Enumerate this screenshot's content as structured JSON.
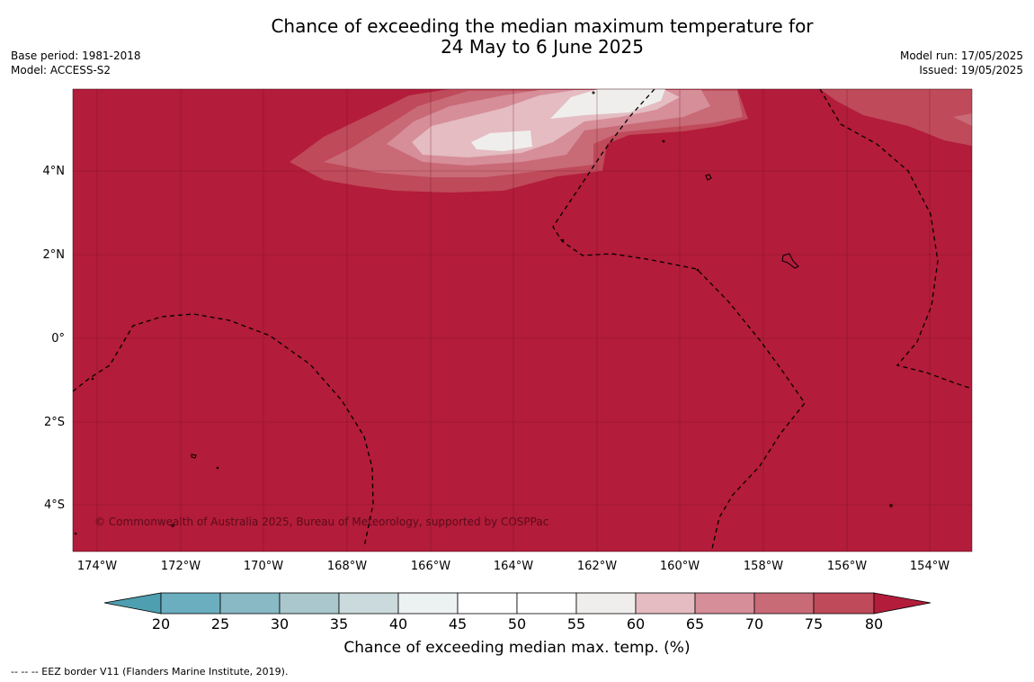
{
  "header": {
    "title_line1": "Chance of exceeding the median maximum temperature for",
    "title_line2": "24 May to 6 June 2025",
    "base_period": "Base period: 1981-2018",
    "model": "Model: ACCESS-S2",
    "model_run": "Model run: 17/05/2025",
    "issued": "Issued: 19/05/2025"
  },
  "map": {
    "lon_labels": [
      "174°W",
      "172°W",
      "170°W",
      "168°W",
      "166°W",
      "164°W",
      "162°W",
      "160°W",
      "158°W",
      "156°W",
      "154°W"
    ],
    "lat_labels": [
      "4°N",
      "2°N",
      "0°",
      "2°S",
      "4°S"
    ],
    "copyright": "© Commonwealth of Australia 2025, Bureau of Meteorology, supported by COSPPac",
    "colors": {
      "dominant": "#b31c3a",
      "coast": "#000000",
      "eez": "#000000"
    }
  },
  "colorbar": {
    "ticks": [
      "20",
      "25",
      "30",
      "35",
      "40",
      "45",
      "50",
      "55",
      "60",
      "65",
      "70",
      "75",
      "80"
    ],
    "colors": [
      "#4e9fb0",
      "#6aaebf",
      "#88b9c4",
      "#a9c7cc",
      "#cbdadc",
      "#ecf1f2",
      "#ffffff",
      "#ffffff",
      "#efeeec",
      "#e4bcc1",
      "#d68e99",
      "#c96a77",
      "#bf4a5a",
      "#b31c3a"
    ],
    "label": "Chance of exceeding median max. temp. (%)"
  },
  "footnote": "--  --  -- EEZ border V11 (Flanders Marine Institute, 2019)."
}
